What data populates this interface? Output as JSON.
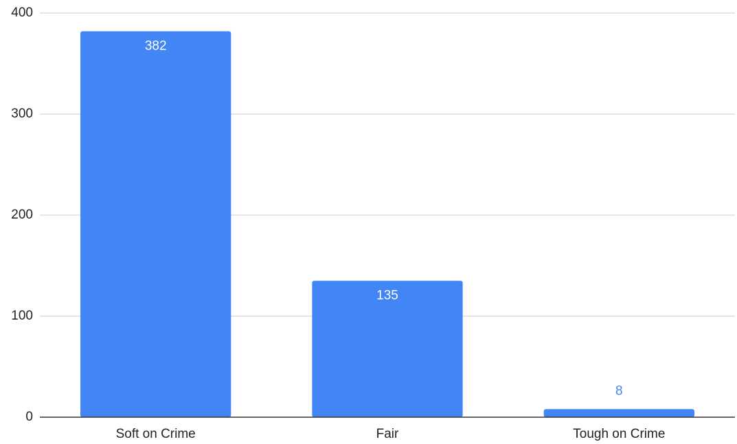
{
  "chart_data": {
    "type": "bar",
    "title": "",
    "xlabel": "",
    "ylabel": "",
    "categories": [
      "Soft on Crime",
      "Fair",
      "Tough on Crime"
    ],
    "values": [
      382,
      135,
      8
    ],
    "data_labels": [
      "382",
      "135",
      "8"
    ],
    "ylim": [
      0,
      400
    ],
    "yticks": [
      0,
      100,
      200,
      300,
      400
    ],
    "ytick_labels": [
      "0",
      "100",
      "200",
      "300",
      "400"
    ],
    "grid": true,
    "legend": "none",
    "colors": {
      "bar": "#4285f4",
      "label_inside": "#ffffff",
      "label_outside": "#4285f4",
      "grid": "#cccccc",
      "axis": "#333333"
    }
  }
}
